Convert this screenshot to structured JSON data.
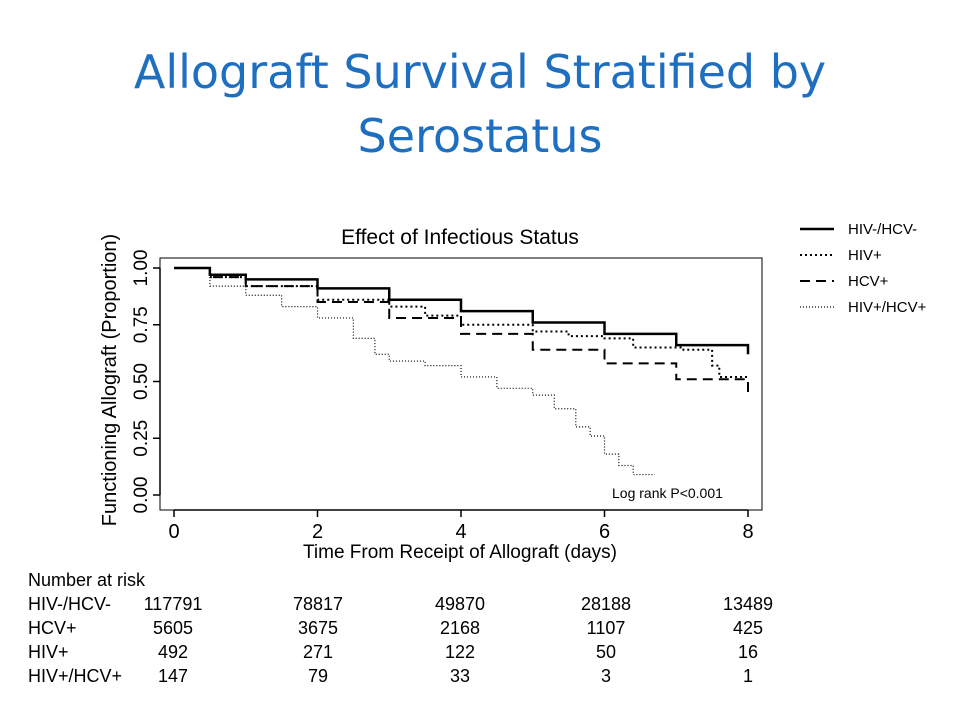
{
  "slide": {
    "title_line1": "Allograft Survival Stratified by",
    "title_line2": "Serostatus"
  },
  "chart_data": {
    "type": "line",
    "title": "Effect of Infectious Status",
    "xlabel": "Time From Receipt of Allograft (days)",
    "ylabel": "Functioning Allograft (Proportion)",
    "xlim": [
      0,
      8
    ],
    "ylim": [
      0,
      1
    ],
    "x_ticks": [
      "0",
      "2",
      "4",
      "6",
      "8"
    ],
    "y_ticks": [
      "0.00",
      "0.25",
      "0.50",
      "0.75",
      "1.00"
    ],
    "annotation": "Log rank P<0.001",
    "legend_position": "top-right",
    "grid": false,
    "series": [
      {
        "name": "HIV-/HCV-",
        "style": "solid",
        "x": [
          0,
          0.5,
          1,
          2,
          3,
          4,
          5,
          6,
          7,
          8
        ],
        "y": [
          1.0,
          0.97,
          0.95,
          0.91,
          0.86,
          0.81,
          0.76,
          0.71,
          0.66,
          0.62
        ]
      },
      {
        "name": "HIV+",
        "style": "dotted",
        "x": [
          0,
          0.5,
          1,
          2,
          3,
          3.5,
          4,
          5,
          5.5,
          6,
          6.4,
          7.1,
          7.5,
          7.6,
          8
        ],
        "y": [
          1.0,
          0.96,
          0.92,
          0.86,
          0.83,
          0.79,
          0.75,
          0.72,
          0.7,
          0.69,
          0.65,
          0.64,
          0.57,
          0.52,
          0.52
        ]
      },
      {
        "name": "HCV+",
        "style": "dashed",
        "x": [
          0,
          0.5,
          1,
          2,
          3,
          4,
          5,
          6,
          7,
          8
        ],
        "y": [
          1.0,
          0.96,
          0.92,
          0.85,
          0.78,
          0.71,
          0.64,
          0.58,
          0.51,
          0.44
        ]
      },
      {
        "name": "HIV+/HCV+",
        "style": "fine-dotted",
        "x": [
          0,
          0.5,
          1,
          1.5,
          2,
          2.5,
          2.8,
          3,
          3.5,
          4,
          4.5,
          5,
          5.3,
          5.6,
          5.8,
          6,
          6.2,
          6.4,
          6.7
        ],
        "y": [
          1.0,
          0.92,
          0.88,
          0.83,
          0.78,
          0.69,
          0.62,
          0.59,
          0.57,
          0.52,
          0.47,
          0.44,
          0.38,
          0.3,
          0.26,
          0.18,
          0.13,
          0.09,
          0.09
        ]
      }
    ]
  },
  "risk_table": {
    "title": "Number at risk",
    "rows": [
      {
        "label": "HIV-/HCV-",
        "values": [
          "117791",
          "78817",
          "49870",
          "28188",
          "13489"
        ]
      },
      {
        "label": "HCV+",
        "values": [
          "5605",
          "3675",
          "2168",
          "1107",
          "425"
        ]
      },
      {
        "label": "HIV+",
        "values": [
          "492",
          "271",
          "122",
          "50",
          "16"
        ]
      },
      {
        "label": "HIV+/HCV+",
        "values": [
          "147",
          "79",
          "33",
          "3",
          "1"
        ]
      }
    ]
  }
}
